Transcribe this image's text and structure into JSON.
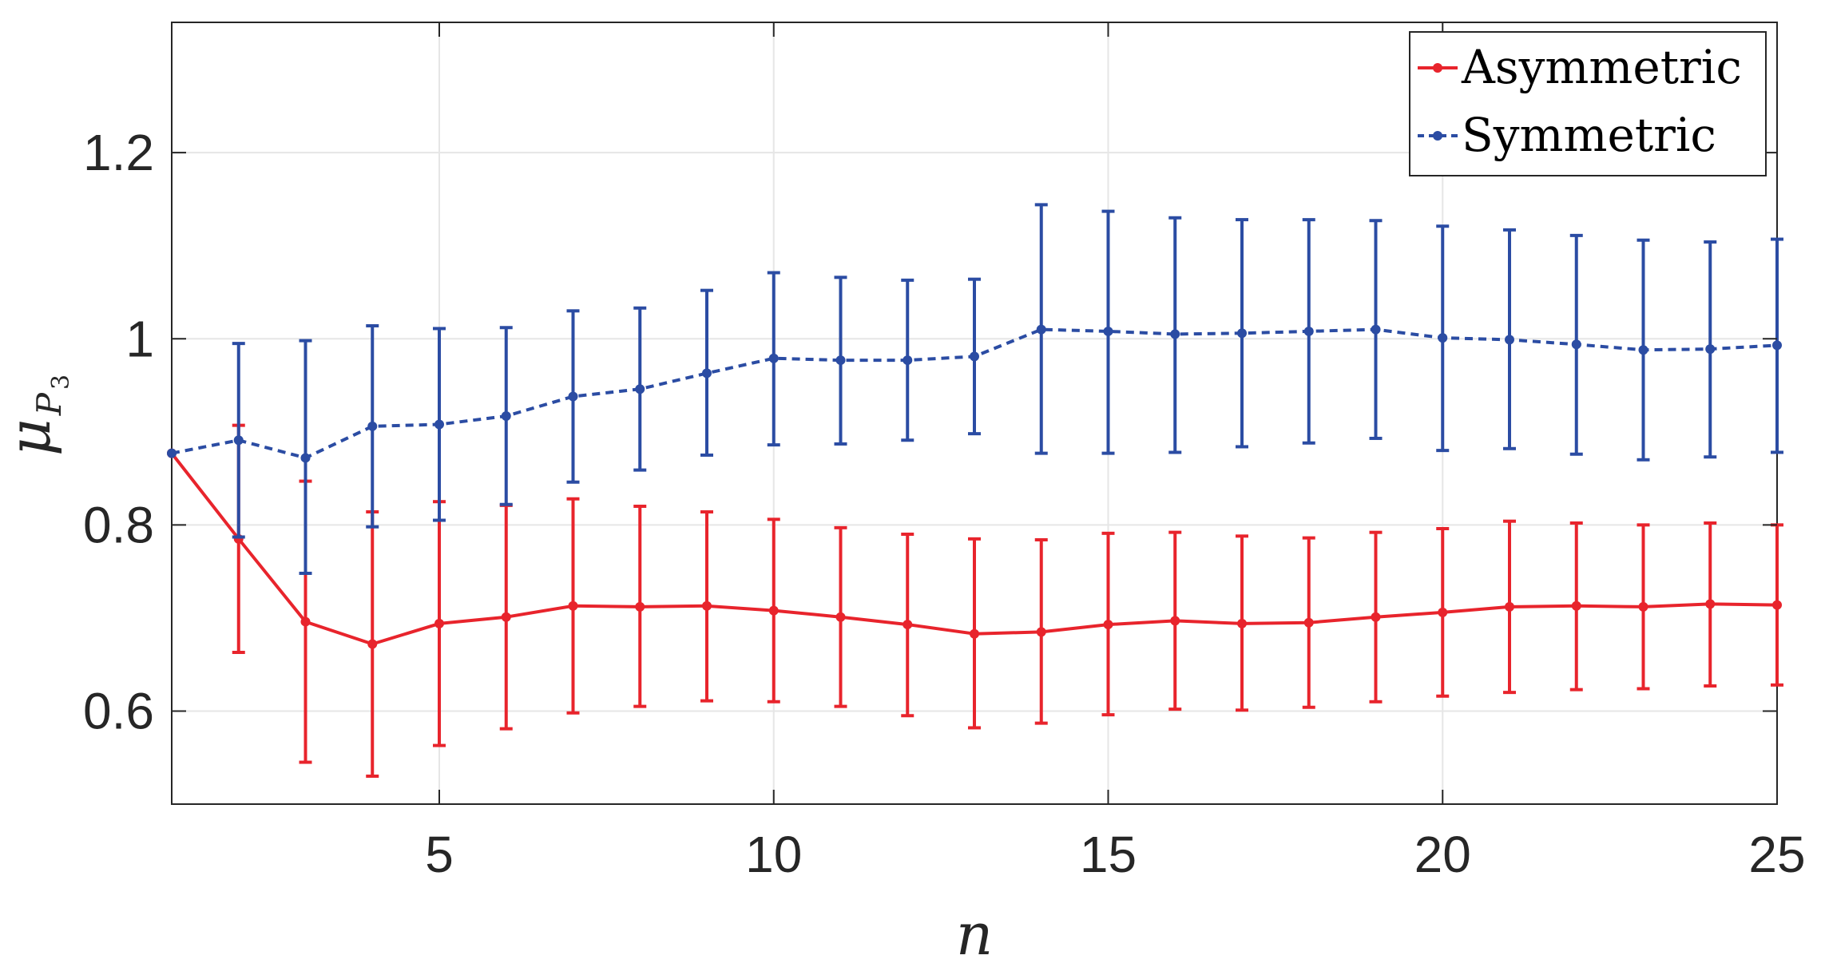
{
  "chart_data": {
    "type": "line",
    "title": "",
    "xlabel": "n",
    "ylabel": {
      "base": "μ",
      "sub": "P",
      "subsub": "3"
    },
    "xlim": [
      1,
      25
    ],
    "ylim": [
      0.5,
      1.34
    ],
    "xticks": [
      5,
      10,
      15,
      20,
      25
    ],
    "yticks": [
      0.6,
      0.8,
      1,
      1.2
    ],
    "ytick_labels": [
      "0.6",
      "0.8",
      "1",
      "1.2"
    ],
    "grid": true,
    "legend_position": "top-right",
    "x": [
      1,
      2,
      3,
      4,
      5,
      6,
      7,
      8,
      9,
      10,
      11,
      12,
      13,
      14,
      15,
      16,
      17,
      18,
      19,
      20,
      21,
      22,
      23,
      24,
      25
    ],
    "series": [
      {
        "name": "Asymmetric",
        "color": "#e8242c",
        "line_style": "solid",
        "values": [
          0.877,
          0.785,
          0.696,
          0.672,
          0.694,
          0.701,
          0.713,
          0.712,
          0.713,
          0.708,
          0.701,
          0.693,
          0.683,
          0.685,
          0.693,
          0.697,
          0.694,
          0.695,
          0.701,
          0.706,
          0.712,
          0.713,
          0.712,
          0.715,
          0.714
        ],
        "err_low": [
          null,
          0.663,
          0.545,
          0.53,
          0.563,
          0.581,
          0.598,
          0.605,
          0.611,
          0.61,
          0.605,
          0.595,
          0.582,
          0.587,
          0.596,
          0.602,
          0.601,
          0.604,
          0.61,
          0.616,
          0.62,
          0.623,
          0.624,
          0.627,
          0.628
        ],
        "err_high": [
          null,
          0.907,
          0.847,
          0.814,
          0.825,
          0.821,
          0.828,
          0.82,
          0.814,
          0.806,
          0.797,
          0.79,
          0.785,
          0.784,
          0.791,
          0.792,
          0.788,
          0.786,
          0.792,
          0.796,
          0.804,
          0.802,
          0.8,
          0.802,
          0.8
        ]
      },
      {
        "name": "Symmetric",
        "color": "#2b4ca3",
        "line_style": "dashed",
        "values": [
          0.877,
          0.891,
          0.872,
          0.906,
          0.908,
          0.917,
          0.938,
          0.946,
          0.963,
          0.979,
          0.977,
          0.977,
          0.981,
          1.01,
          1.008,
          1.005,
          1.006,
          1.008,
          1.01,
          1.001,
          0.999,
          0.994,
          0.988,
          0.989,
          0.993
        ],
        "err_low": [
          null,
          0.787,
          0.748,
          0.798,
          0.805,
          0.822,
          0.846,
          0.859,
          0.875,
          0.886,
          0.887,
          0.891,
          0.898,
          0.877,
          0.877,
          0.878,
          0.884,
          0.888,
          0.893,
          0.88,
          0.882,
          0.876,
          0.87,
          0.873,
          0.878
        ],
        "err_high": [
          null,
          0.995,
          0.998,
          1.014,
          1.011,
          1.012,
          1.03,
          1.033,
          1.052,
          1.071,
          1.066,
          1.063,
          1.064,
          1.144,
          1.137,
          1.13,
          1.128,
          1.128,
          1.127,
          1.121,
          1.117,
          1.111,
          1.106,
          1.104,
          1.107
        ]
      }
    ]
  }
}
